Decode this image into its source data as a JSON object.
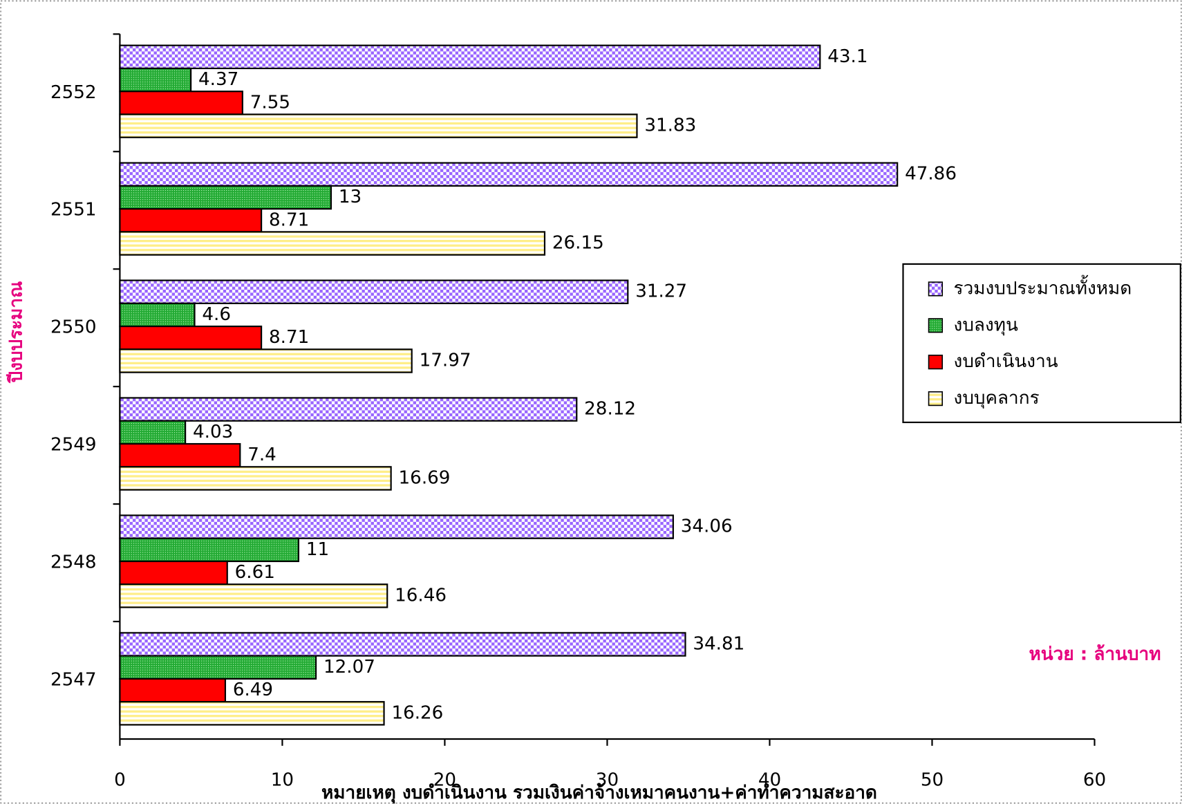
{
  "chart_data": {
    "type": "bar",
    "orientation": "horizontal",
    "categories": [
      "2552",
      "2551",
      "2550",
      "2549",
      "2548",
      "2547"
    ],
    "series": [
      {
        "name": "รวมงบประมาณทั้งหมด",
        "color": "#9966ff",
        "values": [
          43.1,
          47.86,
          31.27,
          28.12,
          34.06,
          34.81
        ]
      },
      {
        "name": "งบลงทุน",
        "color": "#22aa33",
        "values": [
          4.37,
          13,
          4.6,
          4.03,
          11,
          12.07
        ]
      },
      {
        "name": "งบดำเนินงาน",
        "color": "#ff0000",
        "values": [
          7.55,
          8.71,
          8.71,
          7.4,
          6.61,
          6.49
        ]
      },
      {
        "name": "งบบุคลากร",
        "color": "#ffee88",
        "values": [
          31.83,
          26.15,
          17.97,
          16.69,
          16.46,
          16.26
        ]
      }
    ],
    "xlim": [
      0,
      60
    ],
    "xticks": [
      0,
      10,
      20,
      30,
      40,
      50,
      60
    ],
    "ylabel": "ปีงบประมาณ",
    "unit_note": "หน่วย : ล้านบาท",
    "footnote": "หมายเหตุ งบดำเนินงาน รวมเงินค่าจ้างเหมาคนงาน+ค่าทำความสะอาด",
    "legend": "right"
  }
}
